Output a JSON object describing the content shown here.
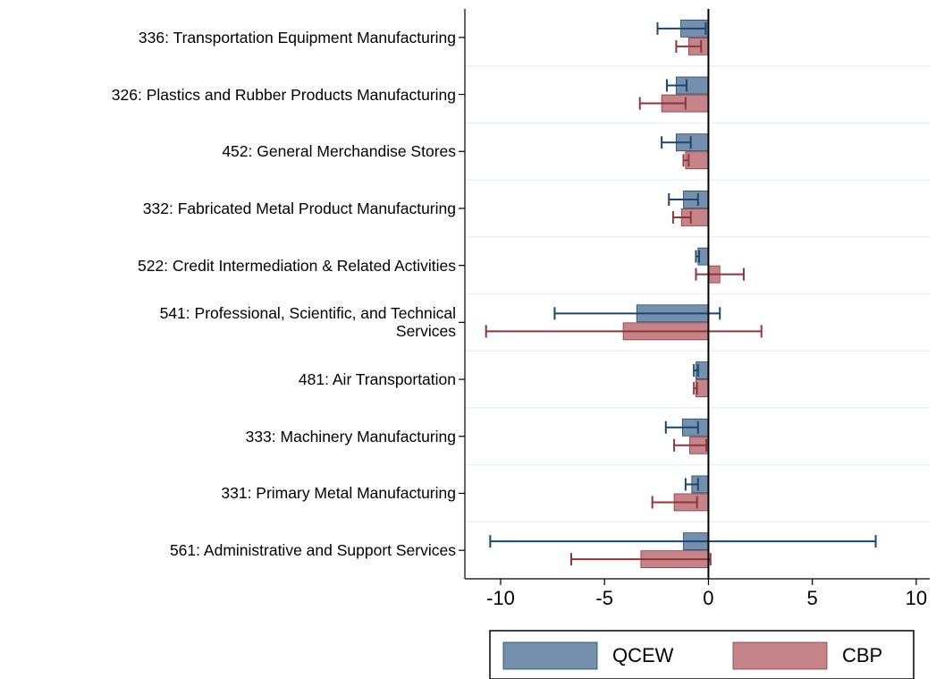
{
  "chart_data": {
    "type": "hbar-errorbar",
    "categories": [
      "336: Transportation Equipment Manufacturing",
      "326: Plastics and Rubber Products Manufacturing",
      "452: General Merchandise Stores",
      "332: Fabricated Metal Product Manufacturing",
      "522: Credit Intermediation & Related Activities",
      "541: Professional, Scientific, and Technical\nServices",
      "481: Air Transportation",
      "333: Machinery Manufacturing",
      "331: Primary Metal Manufacturing",
      "561: Administrative and Support Services"
    ],
    "series": [
      {
        "name": "QCEW",
        "color": "#7590ad",
        "edge_color": "#1a476f",
        "values": [
          -1.33,
          -1.55,
          -1.55,
          -1.2,
          -0.5,
          -3.45,
          -0.6,
          -1.25,
          -0.8,
          -1.2
        ],
        "lower": [
          -2.45,
          -2.0,
          -2.25,
          -1.9,
          -0.6,
          -7.4,
          -0.7,
          -2.05,
          -1.1,
          -10.5
        ],
        "upper": [
          -0.13,
          -1.05,
          -0.85,
          -0.5,
          -0.45,
          0.55,
          -0.5,
          -0.5,
          -0.5,
          8.05
        ]
      },
      {
        "name": "CBP",
        "color": "#c48488",
        "edge_color": "#90353b",
        "values": [
          -0.95,
          -2.25,
          -1.1,
          -1.3,
          0.55,
          -4.1,
          -0.6,
          -0.9,
          -1.65,
          -3.25
        ],
        "lower": [
          -1.55,
          -3.3,
          -1.2,
          -1.7,
          -0.6,
          -10.7,
          -0.7,
          -1.65,
          -2.7,
          -6.6
        ],
        "upper": [
          -0.35,
          -1.1,
          -0.95,
          -0.85,
          1.7,
          2.55,
          -0.55,
          -0.1,
          -0.55,
          0.1
        ]
      }
    ],
    "xlim": [
      -11.72,
      10.65
    ],
    "xticks": [
      -10,
      -5,
      0,
      5,
      10
    ],
    "legend": "bottom"
  }
}
